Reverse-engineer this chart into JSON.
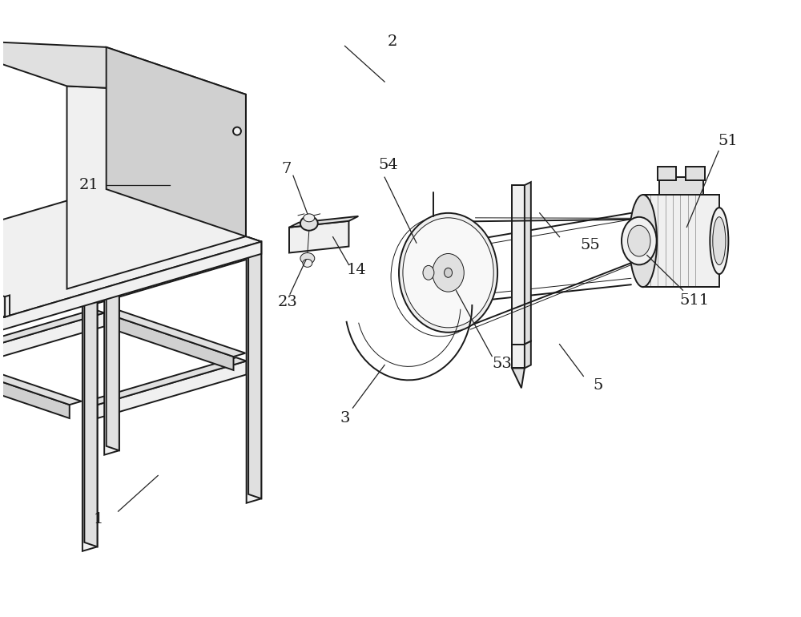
{
  "bg_color": "#ffffff",
  "lc": "#1a1a1a",
  "fig_width": 10.0,
  "fig_height": 7.7,
  "dpi": 100,
  "lw_main": 1.4,
  "lw_thin": 0.7,
  "lw_thick": 2.0,
  "face_light": "#f0f0f0",
  "face_mid": "#e0e0e0",
  "face_dark": "#d0d0d0"
}
